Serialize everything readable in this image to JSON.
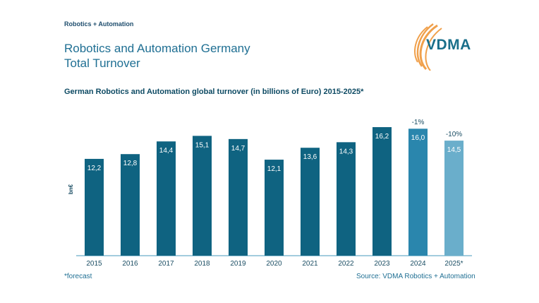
{
  "header": {
    "section_label": "Robotics + Automation",
    "title_line1": "Robotics and Automation Germany",
    "title_line2": "Total Turnover",
    "logo_text": "VDMA"
  },
  "chart_data": {
    "type": "bar",
    "title": "German Robotics and Automation global turnover (in billions of Euro) 2015-2025*",
    "ylabel": "bn€",
    "xlabel": "",
    "categories": [
      "2015",
      "2016",
      "2017",
      "2018",
      "2019",
      "2020",
      "2021",
      "2022",
      "2023",
      "2024",
      "2025*"
    ],
    "values": [
      12.2,
      12.8,
      14.4,
      15.1,
      14.7,
      12.1,
      13.6,
      14.3,
      16.2,
      16.0,
      14.5
    ],
    "value_labels": [
      "12,2",
      "12,8",
      "14,4",
      "15,1",
      "14,7",
      "12,1",
      "13,6",
      "14,3",
      "16,2",
      "16,0",
      "14,5"
    ],
    "annotations": [
      {
        "category": "2024",
        "text": "-1%"
      },
      {
        "category": "2025*",
        "text": "-10%"
      }
    ],
    "ylim": [
      0,
      18
    ],
    "grid": false,
    "bar_colors": [
      "#0f6381",
      "#0f6381",
      "#0f6381",
      "#0f6381",
      "#0f6381",
      "#0f6381",
      "#0f6381",
      "#0f6381",
      "#0f6381",
      "#2a86ad",
      "#6aaecb"
    ]
  },
  "footer": {
    "footnote": "*forecast",
    "source": "Source: VDMA Robotics + Automation"
  }
}
